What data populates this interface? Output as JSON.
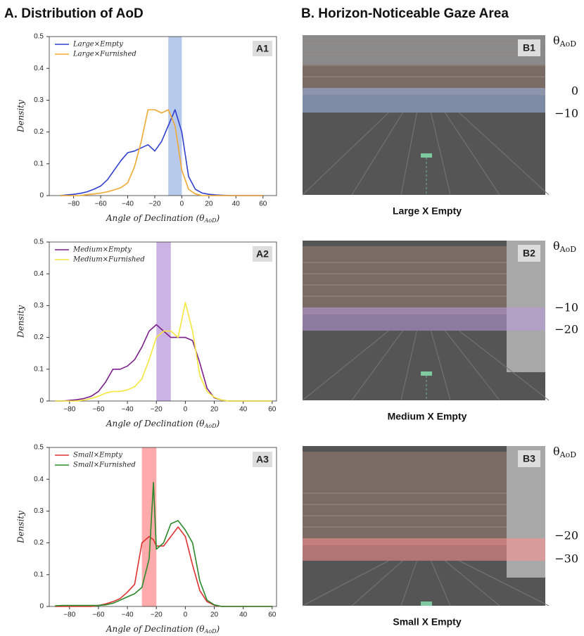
{
  "headings": {
    "left": "A. Distribution of AoD",
    "right": "B. Horizon-Noticeable Gaze Area"
  },
  "chart_data": [
    {
      "type": "line",
      "panel_label": "A1",
      "y_label": "Density",
      "x_label": {
        "text": "Angle of Declination (θ",
        "sub": "AoD",
        "end": ")"
      },
      "x": [
        -90,
        -85,
        -80,
        -75,
        -70,
        -65,
        -60,
        -55,
        -50,
        -45,
        -40,
        -35,
        -30,
        -25,
        -20,
        -15,
        -10,
        -5,
        0,
        5,
        10,
        15,
        20,
        25,
        30,
        35,
        40,
        45,
        50,
        55,
        60
      ],
      "series": [
        {
          "name": "Large×Empty",
          "color": "#2f3fcf",
          "values": [
            0,
            0.002,
            0.004,
            0.007,
            0.012,
            0.02,
            0.03,
            0.05,
            0.08,
            0.11,
            0.135,
            0.14,
            0.15,
            0.16,
            0.14,
            0.17,
            0.22,
            0.27,
            0.2,
            0.06,
            0.02,
            0.008,
            0.004,
            0.002,
            0.001,
            0,
            0,
            0,
            0,
            0,
            0
          ]
        },
        {
          "name": "Large×Furnished",
          "color": "#f0a830",
          "values": [
            0,
            0,
            0,
            0,
            0.003,
            0.005,
            0.008,
            0.012,
            0.018,
            0.025,
            0.04,
            0.09,
            0.17,
            0.27,
            0.27,
            0.26,
            0.27,
            0.22,
            0.08,
            0.02,
            0.005,
            0,
            0,
            0,
            0,
            0,
            0,
            0,
            0,
            0,
            0
          ]
        }
      ],
      "xlim": [
        -98,
        70
      ],
      "ylim": [
        0,
        0.5
      ],
      "xticks": [
        {
          "value": -80,
          "label": "−80"
        },
        {
          "value": -60,
          "label": "−60"
        },
        {
          "value": -40,
          "label": "−40"
        },
        {
          "value": -20,
          "label": "−20"
        },
        0,
        20,
        40,
        60
      ],
      "yticks": [
        0,
        0.1,
        0.2,
        0.3,
        0.4,
        0.5
      ],
      "band": [
        -10,
        0
      ],
      "band_color": "#9fb8e6",
      "legend": "upper left"
    },
    {
      "type": "line",
      "panel_label": "A2",
      "y_label": "Density",
      "x_label": {
        "text": "Angle of Declination (θ",
        "sub": "AoD",
        "end": ")"
      },
      "x": [
        -90,
        -85,
        -80,
        -75,
        -70,
        -65,
        -60,
        -55,
        -50,
        -45,
        -40,
        -35,
        -30,
        -25,
        -20,
        -15,
        -10,
        -5,
        0,
        5,
        10,
        15,
        20,
        25,
        30,
        35,
        40,
        45,
        50,
        55,
        60
      ],
      "series": [
        {
          "name": "Medium×Empty",
          "color": "#7b1f8c",
          "values": [
            0,
            0,
            0.002,
            0.004,
            0.008,
            0.015,
            0.03,
            0.06,
            0.1,
            0.1,
            0.11,
            0.13,
            0.17,
            0.22,
            0.24,
            0.22,
            0.2,
            0.2,
            0.2,
            0.19,
            0.12,
            0.04,
            0.01,
            0.003,
            0,
            0,
            0,
            0,
            0,
            0,
            0
          ]
        },
        {
          "name": "Medium×Furnished",
          "color": "#f5e63a",
          "values": [
            0,
            0,
            0,
            0,
            0.003,
            0.008,
            0.015,
            0.025,
            0.03,
            0.03,
            0.035,
            0.045,
            0.07,
            0.13,
            0.2,
            0.22,
            0.22,
            0.2,
            0.31,
            0.22,
            0.08,
            0.03,
            0.012,
            0.003,
            0,
            0,
            0,
            0,
            0,
            0,
            0
          ]
        }
      ],
      "xlim": [
        -94,
        63
      ],
      "ylim": [
        0,
        0.5
      ],
      "xticks": [
        {
          "value": -80,
          "label": "−80"
        },
        {
          "value": -60,
          "label": "−60"
        },
        {
          "value": -40,
          "label": "−40"
        },
        {
          "value": -20,
          "label": "−20"
        },
        0,
        20,
        40,
        60
      ],
      "yticks": [
        0,
        0.1,
        0.2,
        0.3,
        0.4,
        0.5
      ],
      "band": [
        -20,
        -10
      ],
      "band_color": "#b99bdc",
      "legend": "upper left"
    },
    {
      "type": "line",
      "panel_label": "A3",
      "y_label": "Density",
      "x_label": {
        "text": "Angle of Declination (θ",
        "sub": "AoD",
        "end": ")"
      },
      "x": [
        -90,
        -85,
        -80,
        -75,
        -70,
        -65,
        -60,
        -55,
        -50,
        -45,
        -40,
        -35,
        -30,
        -25,
        -22,
        -20,
        -15,
        -10,
        -5,
        0,
        5,
        10,
        15,
        20,
        25,
        30,
        35,
        40,
        45,
        50,
        55,
        60
      ],
      "series": [
        {
          "name": "Small×Empty",
          "color": "#e03030",
          "values": [
            0,
            0,
            0,
            0,
            0,
            0,
            0.003,
            0.008,
            0.015,
            0.025,
            0.045,
            0.07,
            0.2,
            0.22,
            0.21,
            0.19,
            0.19,
            0.22,
            0.25,
            0.22,
            0.13,
            0.05,
            0.015,
            0.004,
            0,
            0,
            0,
            0,
            0,
            0,
            0,
            0
          ]
        },
        {
          "name": "Small×Furnished",
          "color": "#2a8a2a",
          "values": [
            0.002,
            0.003,
            0.003,
            0.003,
            0.003,
            0.003,
            0.003,
            0.005,
            0.01,
            0.02,
            0.03,
            0.04,
            0.06,
            0.15,
            0.39,
            0.18,
            0.2,
            0.26,
            0.27,
            0.24,
            0.2,
            0.08,
            0.02,
            0.005,
            0,
            0,
            0,
            0,
            0,
            0,
            0,
            0
          ]
        }
      ],
      "xlim": [
        -94,
        63
      ],
      "ylim": [
        0,
        0.5
      ],
      "xticks": [
        {
          "value": -80,
          "label": "−80"
        },
        {
          "value": -60,
          "label": "−60"
        },
        {
          "value": -40,
          "label": "−40"
        },
        {
          "value": -20,
          "label": "−20"
        },
        0,
        20,
        40,
        60
      ],
      "yticks": [
        0,
        0.1,
        0.2,
        0.3,
        0.4,
        0.5
      ],
      "band": [
        -30,
        -20
      ],
      "band_color": "#ff8f8f",
      "legend": "upper left"
    }
  ],
  "panels": [
    {
      "label": "B1",
      "caption": "Large X Empty",
      "theta": "θ",
      "theta_sub": "AoD",
      "angles": [
        "0",
        "−10"
      ]
    },
    {
      "label": "B2",
      "caption": "Medium X Empty",
      "theta": "θ",
      "theta_sub": "AoD",
      "angles": [
        "−10",
        "−20"
      ]
    },
    {
      "label": "B3",
      "caption": "Small X Empty",
      "theta": "θ",
      "theta_sub": "AoD",
      "angles": [
        "−20",
        "−30"
      ]
    }
  ]
}
